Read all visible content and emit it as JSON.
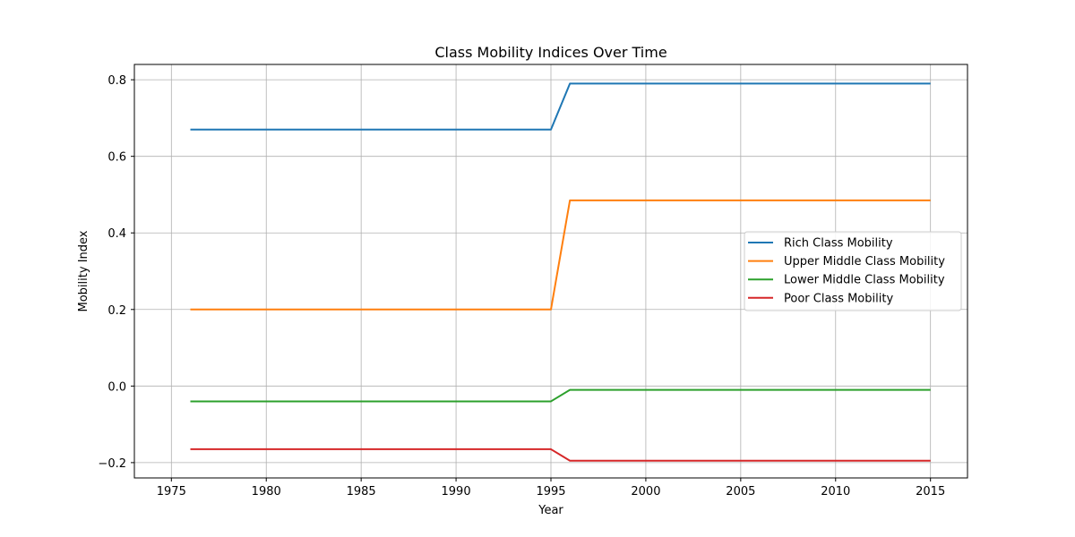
{
  "chart_data": {
    "type": "line",
    "title": "Class Mobility Indices Over Time",
    "xlabel": "Year",
    "ylabel": "Mobility Index",
    "x": [
      1976,
      1977,
      1978,
      1979,
      1980,
      1981,
      1982,
      1983,
      1984,
      1985,
      1986,
      1987,
      1988,
      1989,
      1990,
      1991,
      1992,
      1993,
      1994,
      1995,
      1996,
      1997,
      1998,
      1999,
      2000,
      2001,
      2002,
      2003,
      2004,
      2005,
      2006,
      2007,
      2008,
      2009,
      2010,
      2011,
      2012,
      2013,
      2014,
      2015
    ],
    "xlim": [
      1973.05,
      1016.95
    ],
    "xlim_note": "",
    "ylim": [
      -0.24,
      0.84
    ],
    "xticks": [
      1975,
      1980,
      1985,
      1990,
      1995,
      2000,
      2005,
      2010,
      2015
    ],
    "yticks": [
      0.8,
      0.6,
      0.4,
      0.2,
      0.0,
      -0.2
    ],
    "ytick_labels": [
      "0.8",
      "0.6",
      "0.4",
      "0.2",
      "0.0",
      "−0.2"
    ],
    "grid": true,
    "legend_position": "center-right",
    "series": [
      {
        "name": "Rich Class Mobility",
        "color": "#1f77b4",
        "segments": [
          {
            "from": 1976,
            "to": 1995,
            "value": 0.67
          },
          {
            "from": 1996,
            "to": 2015,
            "value": 0.79
          }
        ]
      },
      {
        "name": "Upper Middle Class Mobility",
        "color": "#ff7f0e",
        "segments": [
          {
            "from": 1976,
            "to": 1995,
            "value": 0.2
          },
          {
            "from": 1996,
            "to": 2015,
            "value": 0.485
          }
        ]
      },
      {
        "name": "Lower Middle Class Mobility",
        "color": "#2ca02c",
        "segments": [
          {
            "from": 1976,
            "to": 1995,
            "value": -0.04
          },
          {
            "from": 1996,
            "to": 2015,
            "value": -0.01
          }
        ]
      },
      {
        "name": "Poor Class Mobility",
        "color": "#d62728",
        "segments": [
          {
            "from": 1976,
            "to": 1995,
            "value": -0.165
          },
          {
            "from": 1996,
            "to": 2015,
            "value": -0.195
          }
        ]
      }
    ]
  }
}
